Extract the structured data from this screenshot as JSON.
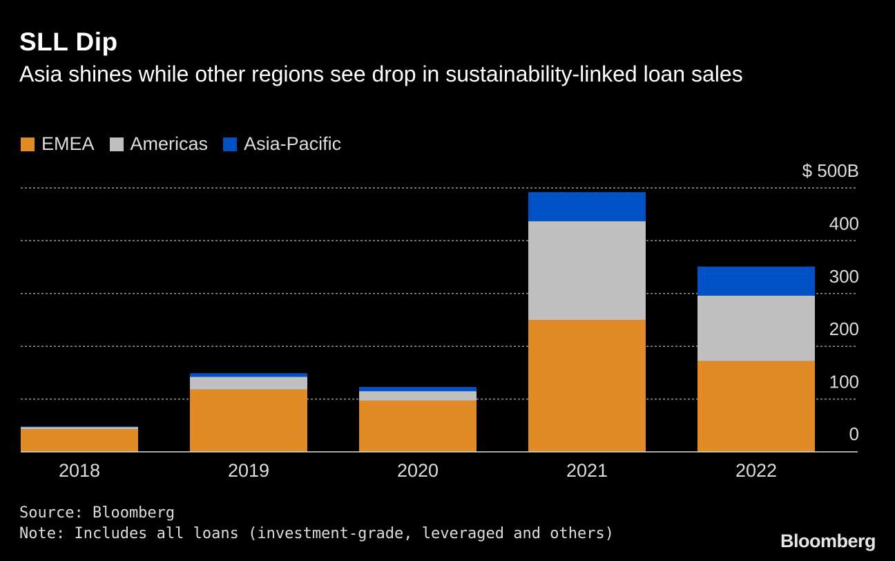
{
  "title": "SLL Dip",
  "subtitle": "Asia shines while other regions see drop in sustainability-linked loan sales",
  "legend": [
    {
      "label": "EMEA",
      "color": "#e08b26"
    },
    {
      "label": "Americas",
      "color": "#c0c0c0"
    },
    {
      "label": "Asia-Pacific",
      "color": "#0052c4"
    }
  ],
  "source": "Source: Bloomberg",
  "note": "Note: Includes all loans (investment-grade, leveraged and others)",
  "brand": "Bloomberg",
  "chart_data": {
    "type": "bar",
    "stacked": true,
    "categories": [
      "2018",
      "2019",
      "2020",
      "2021",
      "2022"
    ],
    "series": [
      {
        "name": "EMEA",
        "values": [
          43,
          118,
          97,
          250,
          172
        ]
      },
      {
        "name": "Americas",
        "values": [
          4,
          24,
          18,
          187,
          124
        ]
      },
      {
        "name": "Asia-Pacific",
        "values": [
          1,
          7,
          8,
          55,
          55
        ]
      }
    ],
    "ylim": [
      0,
      500
    ],
    "yticks": [
      0,
      100,
      200,
      300,
      400,
      500
    ],
    "ytick_labels": [
      "0",
      "100",
      "200",
      "300",
      "400",
      "$ 500B"
    ],
    "grid": true,
    "title": "SLL Dip",
    "xlabel": "",
    "ylabel": ""
  }
}
